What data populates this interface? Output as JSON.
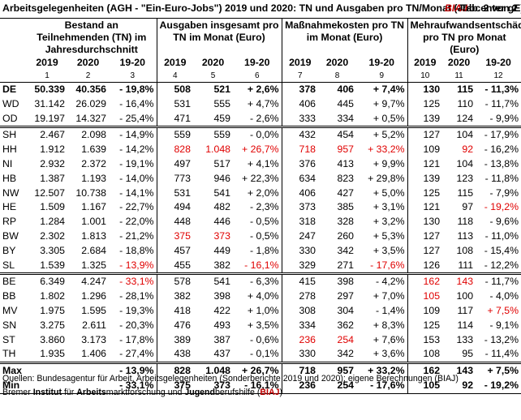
{
  "title": "Arbeitsgelegenheiten (AGH - \"Ein-Euro-Jobs\") 2019 und 2020: TN und Ausgaben pro TN/Monat (Jobcenter gE)",
  "biaj": "BIAJ",
  "tab": "-Tab. 2 von 2",
  "headers": {
    "g1": "Bestand an Teilnehmenden (TN) im Jahresdurchschnitt",
    "g2": "Ausgaben insgesamt pro TN im Monat (Euro)",
    "g3": "Maßnahmekosten pro TN im Monat (Euro)",
    "g4": "Mehraufwandsentschädigung pro TN pro Monat (Euro)",
    "y1": "2019",
    "y2": "2020",
    "y3": "19-20",
    "n": [
      "1",
      "2",
      "3",
      "4",
      "5",
      "6",
      "7",
      "8",
      "9",
      "10",
      "11",
      "12"
    ]
  },
  "rows": [
    {
      "l": "DE",
      "v": [
        "50.339",
        "40.356",
        "- 19,8%",
        "508",
        "521",
        "+ 2,6%",
        "378",
        "406",
        "+ 7,4%",
        "130",
        "115",
        "- 11,3%"
      ]
    },
    {
      "l": "WD",
      "v": [
        "31.142",
        "26.029",
        "- 16,4%",
        "531",
        "555",
        "+ 4,7%",
        "406",
        "445",
        "+ 9,7%",
        "125",
        "110",
        "- 11,7%"
      ]
    },
    {
      "l": "OD",
      "v": [
        "19.197",
        "14.327",
        "- 25,4%",
        "471",
        "459",
        "- 2,6%",
        "333",
        "334",
        "+ 0,5%",
        "139",
        "124",
        "- 9,9%"
      ]
    },
    {
      "l": "SH",
      "v": [
        "2.467",
        "2.098",
        "- 14,9%",
        "559",
        "559",
        "- 0,0%",
        "432",
        "454",
        "+ 5,2%",
        "127",
        "104",
        "- 17,9%"
      ]
    },
    {
      "l": "HH",
      "v": [
        "1.912",
        "1.639",
        "- 14,2%",
        "828",
        "1.048",
        "+ 26,7%",
        "718",
        "957",
        "+ 33,2%",
        "109",
        "92",
        "- 16,2%"
      ]
    },
    {
      "l": "NI",
      "v": [
        "2.932",
        "2.372",
        "- 19,1%",
        "497",
        "517",
        "+ 4,1%",
        "376",
        "413",
        "+ 9,9%",
        "121",
        "104",
        "- 13,8%"
      ]
    },
    {
      "l": "HB",
      "v": [
        "1.387",
        "1.193",
        "- 14,0%",
        "773",
        "946",
        "+ 22,3%",
        "634",
        "823",
        "+ 29,8%",
        "139",
        "123",
        "- 11,8%"
      ]
    },
    {
      "l": "NW",
      "v": [
        "12.507",
        "10.738",
        "- 14,1%",
        "531",
        "541",
        "+ 2,0%",
        "406",
        "427",
        "+ 5,0%",
        "125",
        "115",
        "- 7,9%"
      ]
    },
    {
      "l": "HE",
      "v": [
        "1.509",
        "1.167",
        "- 22,7%",
        "494",
        "482",
        "- 2,3%",
        "373",
        "385",
        "+ 3,1%",
        "121",
        "97",
        "- 19,2%"
      ]
    },
    {
      "l": "RP",
      "v": [
        "1.284",
        "1.001",
        "- 22,0%",
        "448",
        "446",
        "- 0,5%",
        "318",
        "328",
        "+ 3,2%",
        "130",
        "118",
        "- 9,6%"
      ]
    },
    {
      "l": "BW",
      "v": [
        "2.302",
        "1.813",
        "- 21,2%",
        "375",
        "373",
        "- 0,5%",
        "247",
        "260",
        "+ 5,3%",
        "127",
        "113",
        "- 11,0%"
      ]
    },
    {
      "l": "BY",
      "v": [
        "3.305",
        "2.684",
        "- 18,8%",
        "457",
        "449",
        "- 1,8%",
        "330",
        "342",
        "+ 3,5%",
        "127",
        "108",
        "- 15,4%"
      ]
    },
    {
      "l": "SL",
      "v": [
        "1.539",
        "1.325",
        "- 13,9%",
        "455",
        "382",
        "- 16,1%",
        "329",
        "271",
        "- 17,6%",
        "126",
        "111",
        "- 12,2%"
      ]
    },
    {
      "l": "BE",
      "v": [
        "6.349",
        "4.247",
        "- 33,1%",
        "578",
        "541",
        "- 6,3%",
        "415",
        "398",
        "- 4,2%",
        "162",
        "143",
        "- 11,7%"
      ]
    },
    {
      "l": "BB",
      "v": [
        "1.802",
        "1.296",
        "- 28,1%",
        "382",
        "398",
        "+ 4,0%",
        "278",
        "297",
        "+ 7,0%",
        "105",
        "100",
        "- 4,0%"
      ]
    },
    {
      "l": "MV",
      "v": [
        "1.975",
        "1.595",
        "- 19,3%",
        "418",
        "422",
        "+ 1,0%",
        "308",
        "304",
        "- 1,4%",
        "109",
        "117",
        "+ 7,5%"
      ]
    },
    {
      "l": "SN",
      "v": [
        "3.275",
        "2.611",
        "- 20,3%",
        "476",
        "493",
        "+ 3,5%",
        "334",
        "362",
        "+ 8,3%",
        "125",
        "114",
        "- 9,1%"
      ]
    },
    {
      "l": "ST",
      "v": [
        "3.860",
        "3.173",
        "- 17,8%",
        "389",
        "387",
        "- 0,6%",
        "236",
        "254",
        "+ 7,6%",
        "153",
        "133",
        "- 13,2%"
      ]
    },
    {
      "l": "TH",
      "v": [
        "1.935",
        "1.406",
        "- 27,4%",
        "438",
        "437",
        "- 0,1%",
        "330",
        "342",
        "+ 3,6%",
        "108",
        "95",
        "- 11,4%"
      ]
    }
  ],
  "max": {
    "l": "Max",
    "v": [
      "",
      "",
      "- 13,9%",
      "828",
      "1.048",
      "+ 26,7%",
      "718",
      "957",
      "+ 33,2%",
      "162",
      "143",
      "+ 7,5%"
    ]
  },
  "min": {
    "l": "Min",
    "v": [
      "",
      "",
      "- 33,1%",
      "375",
      "373",
      "- 16,1%",
      "236",
      "254",
      "- 17,6%",
      "105",
      "92",
      "- 19,2%"
    ]
  },
  "footer1": "Quellen: Bundesagentur für Arbeit, Arbeitsgelegenheiten (Sonderberichte 2019 und 2020); eigene Berechnungen (BIAJ)",
  "footer2": {
    "p1": "Bremer ",
    "b1": "Institut",
    "p2": " für ",
    "b2": "Arbeits",
    "p3": "marktforschung und ",
    "b3": "Jugend",
    "p4": "berufshilfe (",
    "r": "BIAJ",
    "p5": ")"
  },
  "highlights": {
    "red_cells": [
      "HH-4",
      "HH-5",
      "HH-6",
      "HH-7",
      "HH-8",
      "HH-9",
      "HH-11",
      "HE-12",
      "BW-4",
      "BW-5",
      "SL-3",
      "SL-6",
      "SL-9",
      "BE-3",
      "BE-10",
      "BE-11",
      "BB-10",
      "MV-12",
      "ST-7",
      "ST-8"
    ],
    "red_color": "#e00000"
  }
}
